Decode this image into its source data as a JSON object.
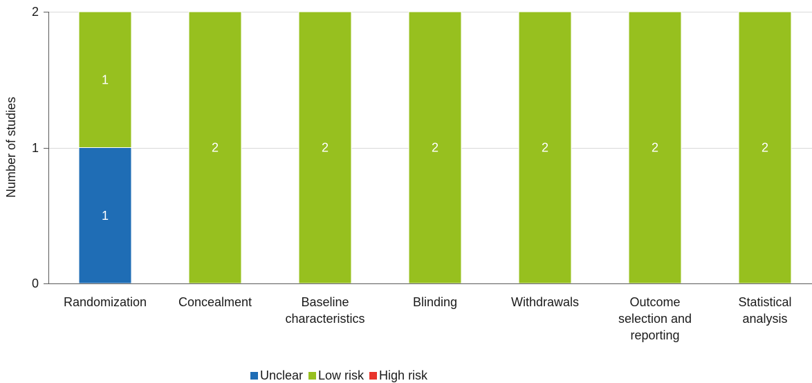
{
  "chart_data": {
    "type": "bar",
    "stacked": true,
    "categories": [
      "Randomization",
      "Concealment",
      "Baseline characteristics",
      "Blinding",
      "Withdrawals",
      "Outcome selection and reporting",
      "Statistical analysis"
    ],
    "series": [
      {
        "name": "Unclear",
        "color": "#1f6db5",
        "values": [
          1,
          0,
          0,
          0,
          0,
          0,
          0
        ]
      },
      {
        "name": "Low risk",
        "color": "#97c01f",
        "values": [
          1,
          2,
          2,
          2,
          2,
          2,
          2
        ]
      },
      {
        "name": "High risk",
        "color": "#e8342c",
        "values": [
          0,
          0,
          0,
          0,
          0,
          0,
          0
        ]
      }
    ],
    "ylabel": "Number of studies",
    "ylim": [
      0,
      2
    ],
    "yticks": [
      0,
      1,
      2
    ],
    "grid": true,
    "data_labels": true,
    "legend_position": "bottom"
  }
}
